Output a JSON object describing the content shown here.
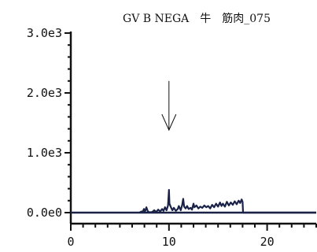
{
  "chart_data": {
    "type": "line",
    "title": "GV B NEGA　牛　筋肉_075",
    "xlabel": "",
    "ylabel": "",
    "xlim": [
      0,
      25
    ],
    "ylim": [
      0,
      3000
    ],
    "x_ticks": [
      0,
      10,
      20
    ],
    "x_tick_labels": [
      "0",
      "10",
      "20"
    ],
    "y_ticks": [
      0,
      1000,
      2000,
      3000
    ],
    "y_tick_labels": [
      "0.0e0",
      "1.0e3",
      "2.0e3",
      "3.0e3"
    ],
    "x_minor_step": 1.25,
    "y_minor_step": 200,
    "grid": false,
    "legend": "none",
    "colors": {
      "line": "#1a2347",
      "axis": "#111111",
      "baseline": "#1a2347",
      "arrow": "#111111"
    },
    "annotation": {
      "type": "arrow",
      "x": 10.0,
      "y_from": 2200,
      "y_to": 1380
    },
    "series": [
      {
        "values": [
          [
            7.0,
            0
          ],
          [
            7.2,
            20
          ],
          [
            7.3,
            5
          ],
          [
            7.45,
            60
          ],
          [
            7.55,
            10
          ],
          [
            7.7,
            90
          ],
          [
            7.85,
            20
          ],
          [
            8.0,
            5
          ],
          [
            8.3,
            10
          ],
          [
            8.5,
            40
          ],
          [
            8.7,
            10
          ],
          [
            8.9,
            50
          ],
          [
            9.1,
            20
          ],
          [
            9.3,
            60
          ],
          [
            9.45,
            30
          ],
          [
            9.6,
            90
          ],
          [
            9.75,
            40
          ],
          [
            9.9,
            120
          ],
          [
            10.0,
            380
          ],
          [
            10.05,
            150
          ],
          [
            10.2,
            90
          ],
          [
            10.35,
            40
          ],
          [
            10.5,
            80
          ],
          [
            10.7,
            30
          ],
          [
            10.9,
            60
          ],
          [
            11.0,
            110
          ],
          [
            11.2,
            40
          ],
          [
            11.35,
            130
          ],
          [
            11.45,
            230
          ],
          [
            11.55,
            100
          ],
          [
            11.7,
            70
          ],
          [
            11.85,
            110
          ],
          [
            12.0,
            60
          ],
          [
            12.2,
            80
          ],
          [
            12.35,
            50
          ],
          [
            12.5,
            150
          ],
          [
            12.6,
            90
          ],
          [
            12.8,
            120
          ],
          [
            13.0,
            70
          ],
          [
            13.2,
            100
          ],
          [
            13.4,
            80
          ],
          [
            13.6,
            120
          ],
          [
            13.8,
            90
          ],
          [
            14.0,
            110
          ],
          [
            14.2,
            70
          ],
          [
            14.4,
            130
          ],
          [
            14.6,
            90
          ],
          [
            14.8,
            150
          ],
          [
            15.0,
            100
          ],
          [
            15.2,
            170
          ],
          [
            15.35,
            110
          ],
          [
            15.5,
            150
          ],
          [
            15.7,
            100
          ],
          [
            15.9,
            180
          ],
          [
            16.1,
            120
          ],
          [
            16.3,
            170
          ],
          [
            16.5,
            130
          ],
          [
            16.7,
            190
          ],
          [
            16.9,
            140
          ],
          [
            17.1,
            200
          ],
          [
            17.25,
            160
          ],
          [
            17.4,
            220
          ],
          [
            17.5,
            180
          ],
          [
            17.55,
            0
          ],
          [
            25.0,
            0
          ]
        ]
      }
    ]
  }
}
